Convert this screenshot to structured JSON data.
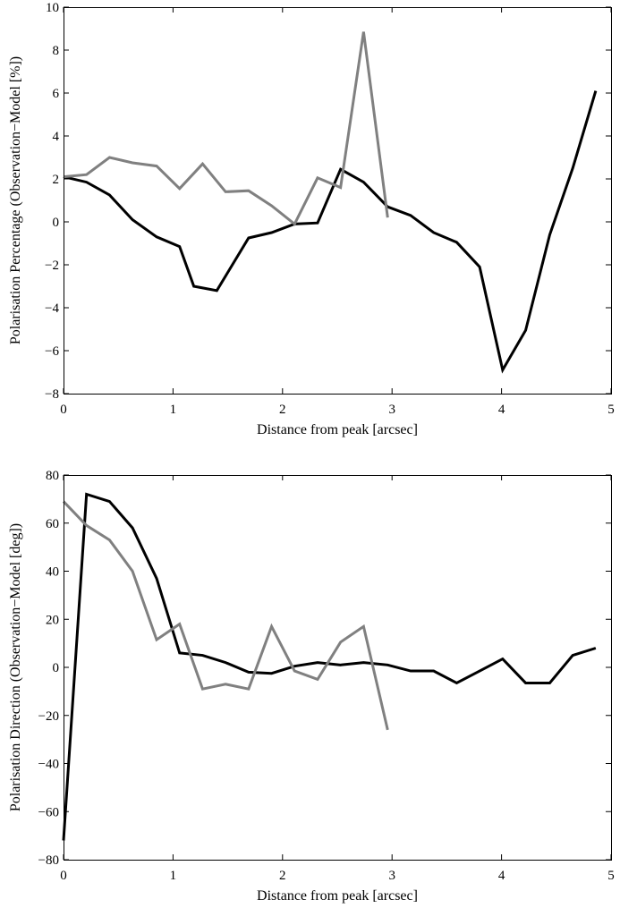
{
  "chart_data": [
    {
      "type": "line",
      "title": "",
      "xlabel": "Distance from peak [arcsec]",
      "ylabel": "Polarisation Percentage (Observation−Model [%])",
      "xlim": [
        0,
        5
      ],
      "ylim": [
        -8,
        10
      ],
      "xticks": [
        0,
        1,
        2,
        3,
        4,
        5
      ],
      "yticks": [
        -8,
        -6,
        -4,
        -2,
        0,
        2,
        4,
        6,
        8,
        10
      ],
      "xtick_labels": [
        "0",
        "1",
        "2",
        "3",
        "4",
        "5"
      ],
      "ytick_labels": [
        "−8",
        "−6",
        "−4",
        "−2",
        "0",
        "2",
        "4",
        "6",
        "8",
        "10"
      ],
      "grid": false,
      "series": [
        {
          "color": "#000000",
          "x": [
            0.0,
            0.21,
            0.42,
            0.63,
            0.85,
            1.06,
            1.19,
            1.4,
            1.69,
            1.9,
            2.11,
            2.32,
            2.53,
            2.74,
            2.96,
            3.17,
            3.38,
            3.59,
            3.8,
            4.01,
            4.22,
            4.44,
            4.65,
            4.86
          ],
          "y": [
            2.1,
            1.85,
            1.25,
            0.1,
            -0.7,
            -1.15,
            -3.0,
            -3.2,
            -0.75,
            -0.5,
            -0.1,
            -0.05,
            2.45,
            1.85,
            0.7,
            0.3,
            -0.5,
            -0.95,
            -2.1,
            -6.9,
            -5.05,
            -0.6,
            2.5,
            6.1
          ]
        },
        {
          "color": "#808080",
          "x": [
            0.0,
            0.21,
            0.42,
            0.63,
            0.85,
            1.06,
            1.27,
            1.48,
            1.69,
            1.9,
            2.11,
            2.32,
            2.53,
            2.74,
            2.96
          ],
          "y": [
            2.1,
            2.2,
            3.0,
            2.75,
            2.6,
            1.55,
            2.7,
            1.4,
            1.45,
            0.75,
            -0.1,
            2.05,
            1.6,
            8.85,
            0.2
          ]
        }
      ]
    },
    {
      "type": "line",
      "title": "",
      "xlabel": "Distance from peak [arcsec]",
      "ylabel": "Polarisation Direction (Observation−Model [deg])",
      "xlim": [
        0,
        5
      ],
      "ylim": [
        -80,
        80
      ],
      "xticks": [
        0,
        1,
        2,
        3,
        4,
        5
      ],
      "yticks": [
        -80,
        -60,
        -40,
        -20,
        0,
        20,
        40,
        60,
        80
      ],
      "xtick_labels": [
        "0",
        "1",
        "2",
        "3",
        "4",
        "5"
      ],
      "ytick_labels": [
        "−80",
        "−60",
        "−40",
        "−20",
        "0",
        "20",
        "40",
        "60",
        "80"
      ],
      "grid": false,
      "series": [
        {
          "color": "#000000",
          "x": [
            0.0,
            0.21,
            0.42,
            0.63,
            0.85,
            1.06,
            1.27,
            1.48,
            1.69,
            1.9,
            2.11,
            2.32,
            2.53,
            2.74,
            2.96,
            3.17,
            3.38,
            3.59,
            3.8,
            4.01,
            4.22,
            4.44,
            4.65,
            4.86
          ],
          "y": [
            -72,
            72,
            69,
            58,
            37,
            6,
            5,
            2,
            -2,
            -2.5,
            0.5,
            2,
            1,
            2,
            1,
            -1.5,
            -1.5,
            -6.5,
            -1.5,
            3.5,
            -6.5,
            -6.5,
            5,
            8
          ]
        },
        {
          "color": "#808080",
          "x": [
            0.0,
            0.21,
            0.42,
            0.63,
            0.85,
            1.06,
            1.27,
            1.48,
            1.69,
            1.9,
            2.11,
            2.32,
            2.53,
            2.74,
            2.96
          ],
          "y": [
            69,
            59,
            53,
            40,
            11.5,
            18,
            -9,
            -7,
            -9,
            17,
            -1.5,
            -5,
            10.5,
            17,
            -26
          ]
        }
      ]
    }
  ]
}
